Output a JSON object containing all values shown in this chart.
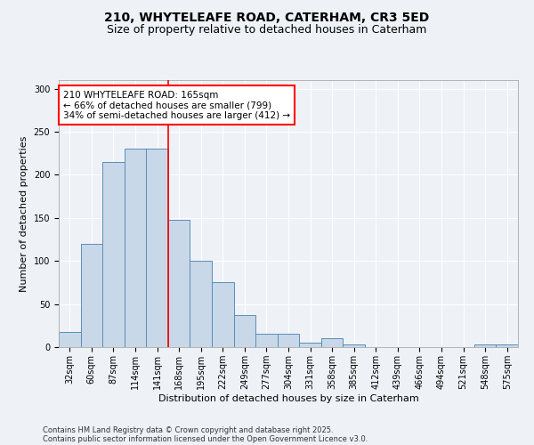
{
  "title1": "210, WHYTELEAFE ROAD, CATERHAM, CR3 5ED",
  "title2": "Size of property relative to detached houses in Caterham",
  "xlabel": "Distribution of detached houses by size in Caterham",
  "ylabel": "Number of detached properties",
  "categories": [
    "32sqm",
    "60sqm",
    "87sqm",
    "114sqm",
    "141sqm",
    "168sqm",
    "195sqm",
    "222sqm",
    "249sqm",
    "277sqm",
    "304sqm",
    "331sqm",
    "358sqm",
    "385sqm",
    "412sqm",
    "439sqm",
    "466sqm",
    "494sqm",
    "521sqm",
    "548sqm",
    "575sqm"
  ],
  "values": [
    18,
    120,
    215,
    230,
    230,
    148,
    100,
    75,
    37,
    16,
    16,
    5,
    10,
    3,
    0,
    0,
    0,
    0,
    0,
    3,
    3
  ],
  "bar_color": "#c8d8e8",
  "bar_edge_color": "#5b8db8",
  "red_line_index": 5,
  "annotation_text": "210 WHYTELEAFE ROAD: 165sqm\n← 66% of detached houses are smaller (799)\n34% of semi-detached houses are larger (412) →",
  "annotation_box_color": "white",
  "annotation_box_edge_color": "red",
  "ylim": [
    0,
    310
  ],
  "yticks": [
    0,
    50,
    100,
    150,
    200,
    250,
    300
  ],
  "background_color": "#eef2f7",
  "grid_color": "white",
  "footer1": "Contains HM Land Registry data © Crown copyright and database right 2025.",
  "footer2": "Contains public sector information licensed under the Open Government Licence v3.0.",
  "title_fontsize": 10,
  "subtitle_fontsize": 9,
  "axis_label_fontsize": 8,
  "tick_fontsize": 7,
  "annotation_fontsize": 7.5,
  "footer_fontsize": 6
}
